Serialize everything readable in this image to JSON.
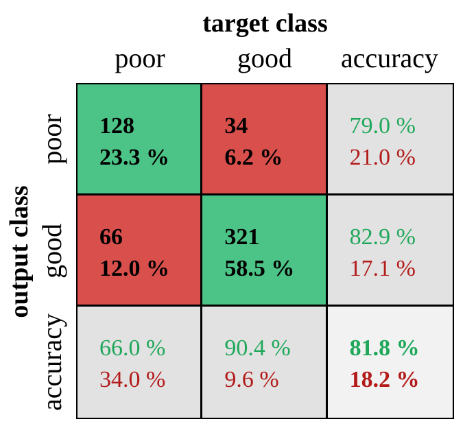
{
  "chart_data": {
    "type": "heatmap",
    "xlabel": "target class",
    "ylabel": "output class",
    "columns": [
      "poor",
      "good",
      "accuracy"
    ],
    "rows": [
      "poor",
      "good",
      "accuracy"
    ],
    "colors": {
      "correct": "#4dc487",
      "incorrect": "#d94f4c",
      "summary": "#e2e2e2",
      "overall": "#f2f2f2",
      "text_good": "#1fa85a",
      "text_bad": "#b31b1b"
    },
    "cells": [
      [
        {
          "line1": "128",
          "line2": "23.3 %",
          "fill": "correct",
          "color1": "#000000",
          "color2": "#000000",
          "bold": true
        },
        {
          "line1": "34",
          "line2": "6.2 %",
          "fill": "incorrect",
          "color1": "#000000",
          "color2": "#000000",
          "bold": true
        },
        {
          "line1": "79.0 %",
          "line2": "21.0 %",
          "fill": "summary",
          "color1": "#1fa85a",
          "color2": "#b31b1b",
          "bold": false
        }
      ],
      [
        {
          "line1": "66",
          "line2": "12.0 %",
          "fill": "incorrect",
          "color1": "#000000",
          "color2": "#000000",
          "bold": true
        },
        {
          "line1": "321",
          "line2": "58.5 %",
          "fill": "correct",
          "color1": "#000000",
          "color2": "#000000",
          "bold": true
        },
        {
          "line1": "82.9 %",
          "line2": "17.1 %",
          "fill": "summary",
          "color1": "#1fa85a",
          "color2": "#b31b1b",
          "bold": false
        }
      ],
      [
        {
          "line1": "66.0 %",
          "line2": "34.0 %",
          "fill": "summary",
          "color1": "#1fa85a",
          "color2": "#b31b1b",
          "bold": false
        },
        {
          "line1": "90.4 %",
          "line2": "9.6 %",
          "fill": "summary",
          "color1": "#1fa85a",
          "color2": "#b31b1b",
          "bold": false
        },
        {
          "line1": "81.8 %",
          "line2": "18.2 %",
          "fill": "overall",
          "color1": "#1fa85a",
          "color2": "#b31b1b",
          "bold": true
        }
      ]
    ]
  }
}
